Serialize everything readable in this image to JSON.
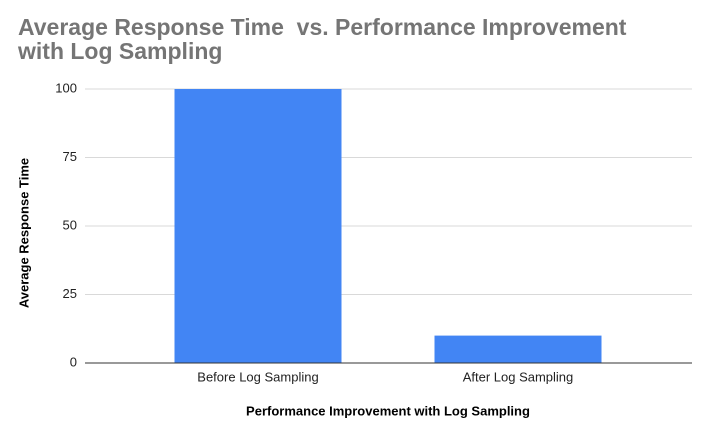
{
  "chart_data": {
    "type": "bar",
    "title": "Average Response Time  vs. Performance Improvement with Log Sampling",
    "x_label": "Performance Improvement with Log Sampling",
    "y_label": "Average Response Time",
    "categories": [
      "Before Log Sampling",
      "After Log Sampling"
    ],
    "values": [
      100,
      10
    ],
    "color": "#4285f4",
    "ylim": [
      0,
      100
    ],
    "yticks": [
      0,
      25,
      50,
      75,
      100
    ],
    "grid": true
  }
}
